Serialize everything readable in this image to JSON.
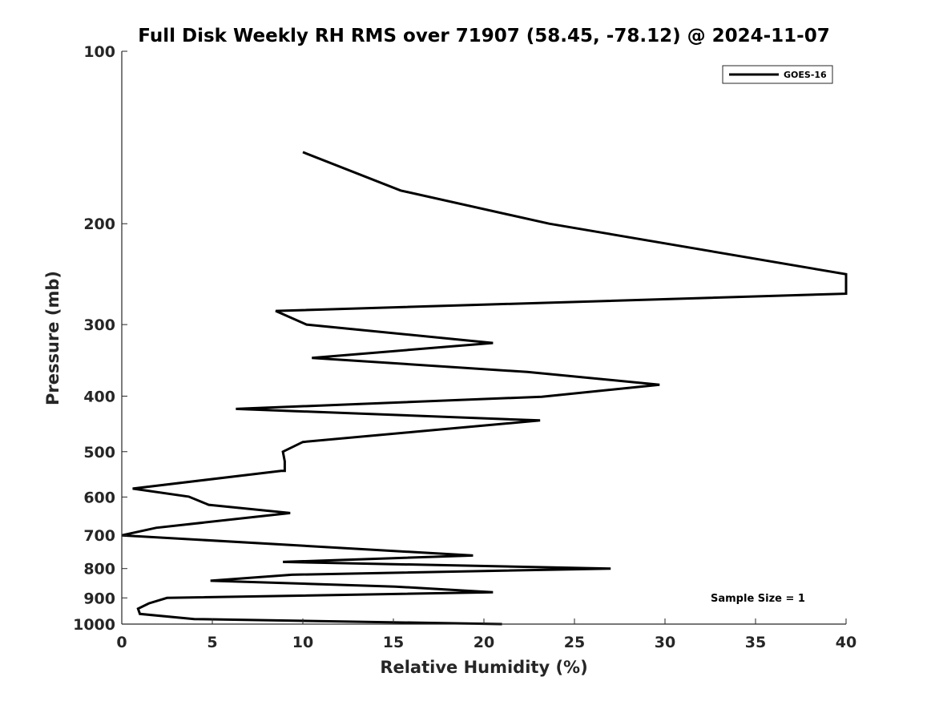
{
  "chart_data": {
    "type": "line",
    "title": "Full Disk Weekly RH RMS over 71907 (58.45, -78.12) @ 2024-11-07",
    "xlabel": "Relative Humidity (%)",
    "ylabel": "Pressure (mb)",
    "xlim": [
      0,
      40
    ],
    "ylim": [
      100,
      1000
    ],
    "y_scale": "log",
    "y_reversed": true,
    "grid": false,
    "x_ticks": [
      "0",
      "5",
      "10",
      "15",
      "20",
      "25",
      "30",
      "35",
      "40"
    ],
    "y_ticks": [
      "100",
      "200",
      "300",
      "400",
      "500",
      "600",
      "700",
      "800",
      "900",
      "1000"
    ],
    "legend": {
      "position": "top-right",
      "entries": [
        "GOES-16"
      ]
    },
    "annotation": "Sample Size = 1",
    "series": [
      {
        "name": "GOES-16",
        "color": "#000000",
        "points": [
          [
            10.0,
            150
          ],
          [
            15.4,
            175
          ],
          [
            23.6,
            200
          ],
          [
            40.0,
            245
          ],
          [
            40.0,
            265
          ],
          [
            8.5,
            284
          ],
          [
            10.2,
            300
          ],
          [
            20.5,
            323
          ],
          [
            10.5,
            343
          ],
          [
            22.4,
            363
          ],
          [
            29.7,
            382
          ],
          [
            23.2,
            401
          ],
          [
            6.3,
            421
          ],
          [
            23.1,
            441
          ],
          [
            16.4,
            461
          ],
          [
            10.0,
            481
          ],
          [
            8.9,
            500
          ],
          [
            9.0,
            520
          ],
          [
            9.0,
            540
          ],
          [
            8.8,
            540
          ],
          [
            0.6,
            580
          ],
          [
            3.7,
            599
          ],
          [
            4.8,
            619
          ],
          [
            9.3,
            640
          ],
          [
            1.9,
            679
          ],
          [
            0.0,
            700
          ],
          [
            19.4,
            759
          ],
          [
            8.9,
            779
          ],
          [
            27.0,
            800
          ],
          [
            9.4,
            820
          ],
          [
            4.9,
            840
          ],
          [
            15.1,
            860
          ],
          [
            20.5,
            880
          ],
          [
            2.5,
            900
          ],
          [
            1.5,
            920
          ],
          [
            0.9,
            940
          ],
          [
            1.0,
            960
          ],
          [
            4.0,
            980
          ],
          [
            21.0,
            1000
          ]
        ]
      }
    ]
  }
}
